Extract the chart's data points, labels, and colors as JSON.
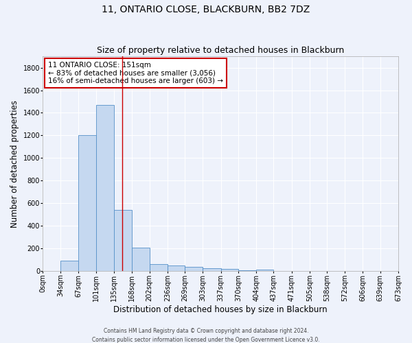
{
  "title": "11, ONTARIO CLOSE, BLACKBURN, BB2 7DZ",
  "subtitle": "Size of property relative to detached houses in Blackburn",
  "xlabel": "Distribution of detached houses by size in Blackburn",
  "ylabel": "Number of detached properties",
  "footer_line1": "Contains HM Land Registry data © Crown copyright and database right 2024.",
  "footer_line2": "Contains public sector information licensed under the Open Government Licence v3.0.",
  "bin_labels": [
    "0sqm",
    "34sqm",
    "67sqm",
    "101sqm",
    "135sqm",
    "168sqm",
    "202sqm",
    "236sqm",
    "269sqm",
    "303sqm",
    "337sqm",
    "370sqm",
    "404sqm",
    "437sqm",
    "471sqm",
    "505sqm",
    "538sqm",
    "572sqm",
    "606sqm",
    "639sqm",
    "673sqm"
  ],
  "bar_heights": [
    0,
    90,
    1200,
    1470,
    540,
    205,
    65,
    50,
    40,
    28,
    20,
    5,
    15,
    0,
    0,
    0,
    0,
    0,
    0,
    0
  ],
  "bar_color": "#c5d8f0",
  "bar_edge_color": "#5590c8",
  "vline_x": 151,
  "bin_edges": [
    0,
    34,
    67,
    101,
    135,
    168,
    202,
    236,
    269,
    303,
    337,
    370,
    404,
    437,
    471,
    505,
    538,
    572,
    606,
    639,
    673
  ],
  "ylim": [
    0,
    1900
  ],
  "annotation_title": "11 ONTARIO CLOSE: 151sqm",
  "annotation_line1": "← 83% of detached houses are smaller (3,056)",
  "annotation_line2": "16% of semi-detached houses are larger (603) →",
  "annotation_box_color": "#ffffff",
  "annotation_box_edge": "#cc0000",
  "vline_color": "#cc0000",
  "background_color": "#eef2fb",
  "grid_color": "#ffffff",
  "title_fontsize": 10,
  "subtitle_fontsize": 9,
  "axis_label_fontsize": 8.5,
  "tick_fontsize": 7,
  "annotation_fontsize": 7.5,
  "footer_fontsize": 5.5
}
